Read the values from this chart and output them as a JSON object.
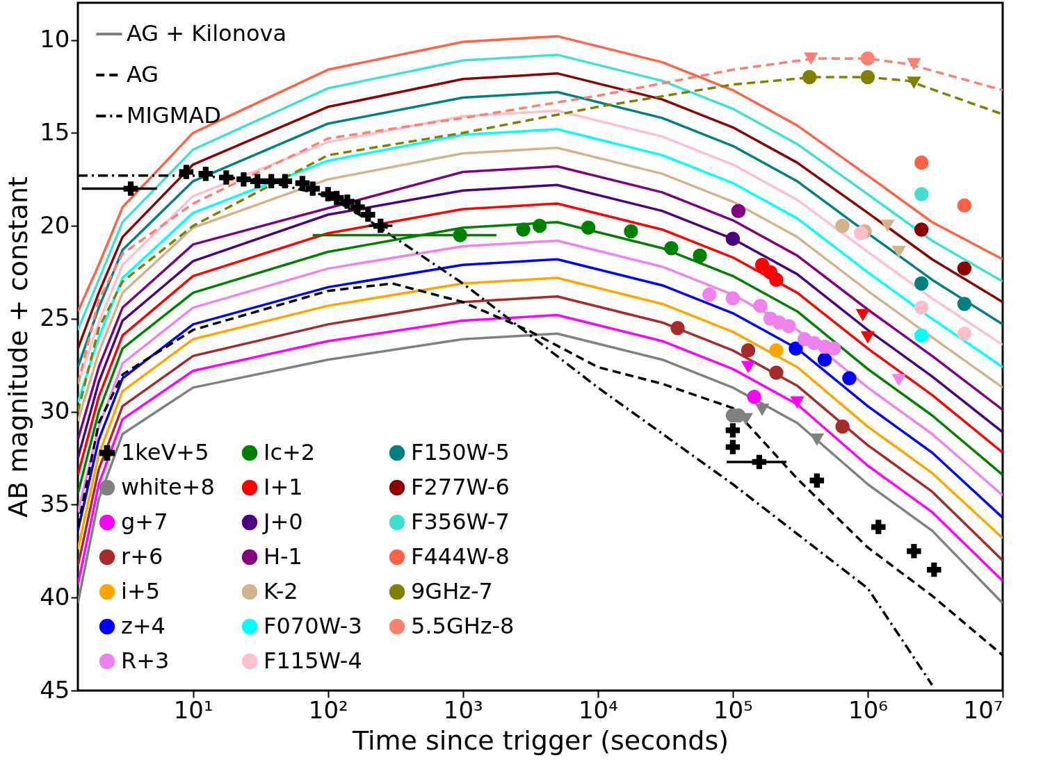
{
  "chart_data": {
    "type": "line",
    "xlabel": "Time since trigger (seconds)",
    "ylabel": "AB magnitude + constant",
    "log": "x",
    "grid": false,
    "legend": "left",
    "marker": "none",
    "line_style": "solid",
    "xlim": [
      1.4,
      10000000
    ],
    "ylim": [
      45,
      8
    ],
    "xticks": [
      {
        "value": 10,
        "label": "10¹"
      },
      {
        "value": 100,
        "label": "10²"
      },
      {
        "value": 1000,
        "label": "10³"
      },
      {
        "value": 10000,
        "label": "10⁴"
      },
      {
        "value": 100000,
        "label": "10⁵"
      },
      {
        "value": 1000000,
        "label": "10⁶"
      },
      {
        "value": 10000000,
        "label": "10⁷"
      }
    ],
    "yticks": [
      10,
      15,
      20,
      25,
      30,
      35,
      40,
      45
    ],
    "x": [
      1.4,
      2,
      3,
      10,
      100,
      1000,
      5000,
      30000,
      100000,
      300000,
      1000000,
      3000000,
      10000000
    ],
    "series": [
      {
        "name": "AG + Kilonova",
        "color": "#808080",
        "values": [
          40.3,
          34.7,
          31.2,
          28.7,
          27.2,
          26.1,
          25.8,
          27.2,
          28.7,
          30.6,
          33.9,
          36.4,
          40.3
        ]
      },
      {
        "color": "#ff00ff",
        "values": [
          39.3,
          33.9,
          30.4,
          27.8,
          26.2,
          25.1,
          24.8,
          26.2,
          27.7,
          29.6,
          32.9,
          35.4,
          39.1
        ]
      },
      {
        "color": "#a52a2a",
        "values": [
          38.3,
          33.1,
          29.7,
          27.0,
          25.3,
          24.1,
          23.8,
          25.2,
          26.7,
          28.6,
          31.8,
          34.3,
          38.0
        ]
      },
      {
        "color": "#ffa500",
        "values": [
          37.4,
          32.3,
          28.9,
          26.1,
          24.3,
          23.1,
          22.8,
          24.2,
          25.7,
          27.6,
          30.8,
          33.3,
          36.8
        ]
      },
      {
        "color": "#0000ff",
        "values": [
          36.4,
          31.5,
          28.2,
          25.3,
          23.3,
          22.1,
          21.8,
          23.2,
          24.7,
          26.6,
          29.7,
          32.2,
          35.7
        ]
      },
      {
        "color": "#ee82ee",
        "values": [
          35.4,
          30.8,
          27.4,
          24.4,
          22.3,
          21.1,
          20.8,
          22.2,
          23.7,
          25.6,
          28.7,
          31.2,
          34.5
        ]
      },
      {
        "color": "#008000",
        "values": [
          34.4,
          30.0,
          26.6,
          23.6,
          21.4,
          20.1,
          19.8,
          21.2,
          22.7,
          24.6,
          27.7,
          30.2,
          33.4
        ]
      },
      {
        "color": "#ff0000",
        "values": [
          33.4,
          29.2,
          25.9,
          22.7,
          20.4,
          19.1,
          18.8,
          20.2,
          21.7,
          23.6,
          26.6,
          29.1,
          32.2
        ]
      },
      {
        "color": "#4b0082",
        "values": [
          32.5,
          28.4,
          25.1,
          21.9,
          19.4,
          18.1,
          17.8,
          19.2,
          20.7,
          22.6,
          25.6,
          28.1,
          31.1
        ]
      },
      {
        "color": "#800080",
        "values": [
          31.5,
          27.6,
          24.4,
          21.0,
          null,
          17.1,
          16.8,
          18.2,
          19.7,
          21.6,
          24.5,
          27.0,
          29.9
        ]
      },
      {
        "color": "#d2b48c",
        "values": [
          30.5,
          26.8,
          23.6,
          20.1,
          17.5,
          16.1,
          15.8,
          17.2,
          18.7,
          20.6,
          23.5,
          26.0,
          28.7
        ]
      },
      {
        "color": "#00ffff",
        "values": [
          29.5,
          26.0,
          22.8,
          19.3,
          16.5,
          15.1,
          14.8,
          16.2,
          17.7,
          19.6,
          22.5,
          25.0,
          27.6
        ]
      },
      {
        "color": "#ffc0cb",
        "values": [
          28.5,
          25.2,
          22.1,
          18.4,
          15.5,
          14.1,
          13.8,
          15.2,
          16.7,
          18.6,
          21.4,
          23.9,
          26.4
        ]
      },
      {
        "color": "#008080",
        "values": [
          27.6,
          24.4,
          21.3,
          17.6,
          14.5,
          13.1,
          12.8,
          14.2,
          15.7,
          17.6,
          20.4,
          22.9,
          25.3
        ]
      },
      {
        "color": "#8b0000",
        "values": [
          26.6,
          23.6,
          20.6,
          16.7,
          13.6,
          12.1,
          11.8,
          13.2,
          14.7,
          16.6,
          19.3,
          21.8,
          24.1
        ]
      },
      {
        "color": "#40e0d0",
        "values": [
          25.6,
          22.9,
          19.8,
          15.9,
          12.6,
          11.1,
          10.8,
          12.2,
          13.7,
          15.6,
          18.3,
          20.8,
          23.0
        ]
      },
      {
        "color": "#ff6347",
        "values": [
          24.6,
          22.1,
          19.0,
          15.0,
          11.6,
          10.1,
          9.8,
          11.2,
          12.7,
          14.6,
          17.3,
          19.8,
          21.8
        ]
      },
      {
        "line_style": "dashed",
        "color": "#808000",
        "x": [
          1.4,
          2,
          3,
          10,
          100,
          1000,
          10000,
          100000,
          400000,
          1000000,
          2000000,
          10000000
        ],
        "values": [
          30.0,
          25.5,
          23.0,
          20.0,
          16.2,
          15.0,
          13.6,
          12.4,
          12.0,
          12.0,
          12.2,
          14.0
        ]
      },
      {
        "line_style": "dashed",
        "color": "#fa8072",
        "x": [
          1.4,
          2,
          3,
          10,
          100,
          1000,
          10000,
          100000,
          400000,
          1000000,
          2000000,
          10000000
        ],
        "values": [
          28.5,
          24.0,
          21.5,
          18.8,
          15.3,
          14.2,
          13.0,
          11.6,
          11.0,
          11.0,
          11.3,
          12.7
        ]
      },
      {
        "name": "AG",
        "line_style": "dashed",
        "color": "#000000",
        "x": [
          1.4,
          2,
          3,
          10,
          100,
          300,
          1000,
          3000,
          10000,
          30000,
          100000,
          300000,
          1000000,
          3000000,
          10000000
        ],
        "values": [
          36.2,
          30.6,
          28.0,
          25.6,
          23.5,
          23.1,
          24.1,
          25.6,
          27.6,
          28.5,
          29.8,
          33.6,
          37.3,
          39.9,
          43.1
        ]
      },
      {
        "name": "MIGMAD",
        "line_style": "dashdot",
        "color": "#000000",
        "x": [
          1.4,
          10,
          30,
          100,
          200,
          1000,
          10000,
          100000,
          1000000,
          3000000
        ],
        "values": [
          17.3,
          17.3,
          17.5,
          18.4,
          19.7,
          23.1,
          28.7,
          33.9,
          39.5,
          44.7
        ]
      },
      {
        "type": "scatter",
        "name": "1keV+5",
        "marker": "cross",
        "color": "#000000",
        "x": [
          3.45,
          8.9,
          12.4,
          17.6,
          23.7,
          30,
          38,
          48,
          64.6,
          77,
          100,
          116,
          139,
          166,
          198,
          245,
          100000,
          100000,
          157000,
          420000,
          1200000,
          2200000,
          3100000
        ],
        "values": [
          18.0,
          17.1,
          17.2,
          17.4,
          17.5,
          17.6,
          17.6,
          17.6,
          17.7,
          18.0,
          18.3,
          18.5,
          18.7,
          19.0,
          19.4,
          20.0,
          31.0,
          31.9,
          32.7,
          33.7,
          36.2,
          37.5,
          38.5
        ],
        "xerrors": [
          [
            1.5,
            5.4
          ],
          null,
          null,
          null,
          null,
          null,
          null,
          null,
          null,
          null,
          null,
          null,
          null,
          null,
          null,
          [
            200,
            300
          ],
          null,
          null,
          [
            90000,
            250000
          ],
          null,
          null,
          null,
          null
        ]
      },
      {
        "type": "scatter",
        "name": "white+8",
        "marker": "circle",
        "color": "#808080",
        "x": [
          100000,
          110000
        ],
        "values": [
          30.2,
          30.2
        ]
      },
      {
        "type": "scatter",
        "name": "g+7",
        "marker": "circle",
        "color": "#ff00ff",
        "x": [
          144000
        ],
        "values": [
          29.2
        ]
      },
      {
        "type": "scatter",
        "name": "r+6",
        "marker": "circle",
        "color": "#a52a2a",
        "x": [
          39000,
          130000,
          210000,
          650000
        ],
        "values": [
          25.5,
          26.7,
          27.9,
          30.8
        ]
      },
      {
        "type": "scatter",
        "name": "i+5",
        "marker": "circle",
        "color": "#ffa500",
        "x": [
          210000
        ],
        "values": [
          26.7
        ]
      },
      {
        "type": "scatter",
        "name": "z+4",
        "marker": "circle",
        "color": "#0000ff",
        "x": [
          293000,
          480000,
          730000
        ],
        "values": [
          26.6,
          27.2,
          28.2
        ]
      },
      {
        "type": "scatter",
        "name": "R+3",
        "marker": "circle",
        "color": "#ee82ee",
        "x": [
          67000,
          100000,
          160000,
          190000,
          220000,
          260000,
          340000,
          400000,
          480000,
          560000
        ],
        "values": [
          23.7,
          23.9,
          24.3,
          25.0,
          25.2,
          25.4,
          26.1,
          26.3,
          26.5,
          26.6
        ]
      },
      {
        "type": "scatter",
        "name": "Ic+2",
        "marker": "circle",
        "color": "#008000",
        "x": [
          953,
          2800,
          3700,
          8500,
          17600,
          35000,
          57000
        ],
        "values": [
          20.5,
          20.2,
          20.0,
          20.1,
          20.3,
          21.2,
          21.6
        ],
        "xerrors": [
          [
            77,
            1770
          ],
          null,
          null,
          null,
          null,
          null,
          null
        ]
      },
      {
        "type": "scatter",
        "name": "I+1",
        "marker": "circle",
        "color": "#ff0000",
        "x": [
          165000,
          190000,
          210000
        ],
        "values": [
          22.1,
          22.5,
          22.9
        ]
      },
      {
        "type": "scatter",
        "name": "J+0",
        "marker": "circle",
        "color": "#4b0082",
        "x": [
          100000
        ],
        "values": [
          20.7
        ]
      },
      {
        "type": "scatter",
        "name": "H-1",
        "marker": "circle",
        "color": "#800080",
        "x": [
          110000
        ],
        "values": [
          19.2
        ]
      },
      {
        "type": "scatter",
        "name": "K-2",
        "marker": "circle",
        "color": "#d2b48c",
        "x": [
          650000,
          950000
        ],
        "values": [
          20.0,
          20.3
        ]
      },
      {
        "type": "scatter",
        "name": "F070W-3",
        "marker": "circle",
        "color": "#00ffff",
        "x": [
          2500000
        ],
        "values": [
          25.9
        ]
      },
      {
        "type": "scatter",
        "name": "F115W-4",
        "marker": "circle",
        "color": "#ffc0cb",
        "x": [
          890000,
          2500000,
          5200000
        ],
        "values": [
          20.4,
          24.4,
          25.8
        ]
      },
      {
        "type": "scatter",
        "name": "F150W-5",
        "marker": "circle",
        "color": "#008080",
        "x": [
          2500000,
          5200000
        ],
        "values": [
          23.1,
          24.2
        ]
      },
      {
        "type": "scatter",
        "name": "F277W-6",
        "marker": "circle",
        "color": "#8b0000",
        "x": [
          2500000,
          5200000
        ],
        "values": [
          20.2,
          22.3
        ]
      },
      {
        "type": "scatter",
        "name": "F356W-7",
        "marker": "circle",
        "color": "#40e0d0",
        "x": [
          2500000
        ],
        "values": [
          18.3
        ]
      },
      {
        "type": "scatter",
        "name": "F444W-8",
        "marker": "circle",
        "color": "#ff6347",
        "x": [
          2500000,
          5200000
        ],
        "values": [
          16.6,
          18.9
        ]
      },
      {
        "type": "scatter",
        "name": "9GHz-7",
        "marker": "circle",
        "color": "#808000",
        "x": [
          370000,
          1000000
        ],
        "values": [
          12.0,
          12.0
        ]
      },
      {
        "type": "scatter",
        "name": "5.5GHz-8",
        "marker": "circle",
        "color": "#fa8072",
        "x": [
          1000000
        ],
        "values": [
          11.0
        ]
      },
      {
        "type": "scatter",
        "marker": "triangle",
        "color": "#808080",
        "x": [
          125000,
          165000,
          420000
        ],
        "values": [
          30.4,
          29.9,
          31.5
        ]
      },
      {
        "type": "scatter",
        "marker": "triangle",
        "color": "#ff00ff",
        "x": [
          130000,
          300000
        ],
        "values": [
          27.6,
          29.5
        ]
      },
      {
        "type": "scatter",
        "marker": "triangle",
        "color": "#ee82ee",
        "x": [
          1700000
        ],
        "values": [
          28.3
        ]
      },
      {
        "type": "scatter",
        "marker": "triangle",
        "color": "#ff0000",
        "x": [
          920000,
          1000000
        ],
        "values": [
          24.8,
          26.0
        ]
      },
      {
        "type": "scatter",
        "marker": "triangle",
        "color": "#d2b48c",
        "x": [
          1400000,
          1700000
        ],
        "values": [
          20.0,
          21.4
        ]
      },
      {
        "type": "scatter",
        "marker": "triangle",
        "color": "#808000",
        "x": [
          2200000
        ],
        "values": [
          12.3
        ]
      },
      {
        "type": "scatter",
        "marker": "triangle",
        "color": "#fa8072",
        "x": [
          380000,
          2200000
        ],
        "values": [
          11.0,
          11.3
        ]
      }
    ]
  }
}
